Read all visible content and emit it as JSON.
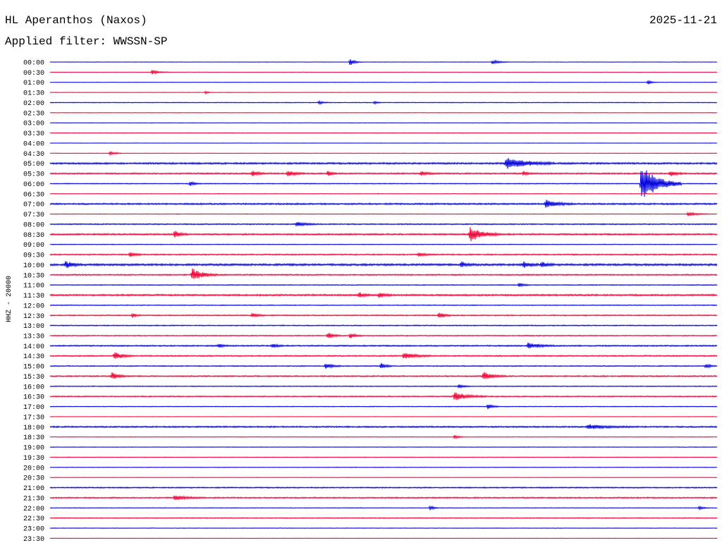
{
  "header": {
    "station": "HL Aperanthos (Naxos)",
    "date": "2025-11-21",
    "filter": "Applied filter: WWSSN-SP"
  },
  "channel_label": "HHZ - 20000",
  "colors": {
    "odd_row": "#0000dd",
    "even_row": "#ee0033"
  },
  "chart_data": {
    "type": "line",
    "title": "HL Aperanthos (Naxos)",
    "subtitle": "Applied filter: WWSSN-SP",
    "ylabel": "HHZ - 20000",
    "row_labels": [
      "00:00",
      "00:30",
      "01:00",
      "01:30",
      "02:00",
      "02:30",
      "03:00",
      "03:30",
      "04:00",
      "04:30",
      "05:00",
      "05:30",
      "06:00",
      "06:30",
      "07:00",
      "07:30",
      "08:00",
      "08:30",
      "09:00",
      "09:30",
      "10:00",
      "10:30",
      "11:00",
      "11:30",
      "12:00",
      "12:30",
      "13:00",
      "13:30",
      "14:00",
      "14:30",
      "15:00",
      "15:30",
      "16:00",
      "16:30",
      "17:00",
      "17:30",
      "18:00",
      "18:30",
      "19:00",
      "19:30",
      "20:00",
      "20:30",
      "21:00",
      "21:30",
      "22:00",
      "22:30",
      "23:00",
      "23:30"
    ],
    "row_minutes": 30,
    "noise": [
      0.3,
      0.3,
      0.3,
      0.3,
      0.5,
      0.3,
      0.3,
      0.4,
      0.3,
      0.3,
      1.2,
      1.0,
      0.6,
      0.4,
      1.1,
      0.4,
      0.8,
      1.1,
      0.5,
      0.9,
      1.4,
      0.9,
      0.6,
      1.2,
      0.6,
      0.8,
      0.7,
      0.7,
      0.9,
      0.9,
      0.7,
      0.9,
      0.6,
      0.8,
      0.5,
      0.3,
      1.0,
      0.4,
      0.4,
      0.4,
      0.4,
      0.3,
      0.8,
      0.9,
      0.4,
      0.6,
      0.4,
      0.3
    ],
    "events": [
      {
        "row": 0,
        "minute": 13.5,
        "amplitude": 5,
        "duration": 0.5
      },
      {
        "row": 0,
        "minute": 19.9,
        "amplitude": 3,
        "duration": 0.8
      },
      {
        "row": 1,
        "minute": 4.6,
        "amplitude": 3,
        "duration": 0.8
      },
      {
        "row": 2,
        "minute": 26.9,
        "amplitude": 3,
        "duration": 0.4
      },
      {
        "row": 3,
        "minute": 7.0,
        "amplitude": 2,
        "duration": 0.3
      },
      {
        "row": 4,
        "minute": 12.1,
        "amplitude": 2,
        "duration": 0.5
      },
      {
        "row": 4,
        "minute": 14.6,
        "amplitude": 2,
        "duration": 0.3
      },
      {
        "row": 9,
        "minute": 2.7,
        "amplitude": 3,
        "duration": 0.6
      },
      {
        "row": 10,
        "minute": 20.5,
        "amplitude": 8,
        "duration": 2.2
      },
      {
        "row": 11,
        "minute": 9.1,
        "amplitude": 4,
        "duration": 0.6
      },
      {
        "row": 11,
        "minute": 10.7,
        "amplitude": 4,
        "duration": 0.8
      },
      {
        "row": 11,
        "minute": 12.5,
        "amplitude": 4,
        "duration": 0.4
      },
      {
        "row": 11,
        "minute": 16.7,
        "amplitude": 3,
        "duration": 0.6
      },
      {
        "row": 11,
        "minute": 21.3,
        "amplitude": 3,
        "duration": 0.4
      },
      {
        "row": 11,
        "minute": 27.9,
        "amplitude": 4,
        "duration": 0.6
      },
      {
        "row": 12,
        "minute": 6.3,
        "amplitude": 3,
        "duration": 0.5
      },
      {
        "row": 12,
        "minute": 26.6,
        "amplitude": 26,
        "duration": 1.8
      },
      {
        "row": 14,
        "minute": 22.3,
        "amplitude": 5,
        "duration": 1.2
      },
      {
        "row": 15,
        "minute": 28.7,
        "amplitude": 3,
        "duration": 0.9
      },
      {
        "row": 16,
        "minute": 11.1,
        "amplitude": 3,
        "duration": 1.0
      },
      {
        "row": 17,
        "minute": 5.6,
        "amplitude": 5,
        "duration": 0.6
      },
      {
        "row": 17,
        "minute": 18.9,
        "amplitude": 10,
        "duration": 1.3
      },
      {
        "row": 19,
        "minute": 3.6,
        "amplitude": 3,
        "duration": 0.6
      },
      {
        "row": 19,
        "minute": 16.6,
        "amplitude": 3,
        "duration": 0.6
      },
      {
        "row": 20,
        "minute": 0.7,
        "amplitude": 5,
        "duration": 0.7
      },
      {
        "row": 20,
        "minute": 18.5,
        "amplitude": 4,
        "duration": 0.6
      },
      {
        "row": 20,
        "minute": 21.3,
        "amplitude": 4,
        "duration": 0.7
      },
      {
        "row": 20,
        "minute": 22.1,
        "amplitude": 4,
        "duration": 0.6
      },
      {
        "row": 21,
        "minute": 6.4,
        "amplitude": 9,
        "duration": 1.1
      },
      {
        "row": 22,
        "minute": 21.1,
        "amplitude": 3,
        "duration": 0.5
      },
      {
        "row": 23,
        "minute": 13.9,
        "amplitude": 4,
        "duration": 0.6
      },
      {
        "row": 23,
        "minute": 14.8,
        "amplitude": 4,
        "duration": 0.6
      },
      {
        "row": 25,
        "minute": 3.7,
        "amplitude": 3,
        "duration": 0.4
      },
      {
        "row": 25,
        "minute": 9.1,
        "amplitude": 3,
        "duration": 0.6
      },
      {
        "row": 25,
        "minute": 17.5,
        "amplitude": 5,
        "duration": 0.5
      },
      {
        "row": 27,
        "minute": 12.5,
        "amplitude": 5,
        "duration": 0.6
      },
      {
        "row": 27,
        "minute": 13.5,
        "amplitude": 4,
        "duration": 0.5
      },
      {
        "row": 28,
        "minute": 7.6,
        "amplitude": 3,
        "duration": 0.4
      },
      {
        "row": 28,
        "minute": 10.0,
        "amplitude": 3,
        "duration": 0.5
      },
      {
        "row": 28,
        "minute": 21.5,
        "amplitude": 4,
        "duration": 1.2
      },
      {
        "row": 29,
        "minute": 2.9,
        "amplitude": 5,
        "duration": 0.9
      },
      {
        "row": 29,
        "minute": 15.9,
        "amplitude": 4,
        "duration": 1.3
      },
      {
        "row": 30,
        "minute": 12.4,
        "amplitude": 4,
        "duration": 0.7
      },
      {
        "row": 30,
        "minute": 14.9,
        "amplitude": 4,
        "duration": 0.5
      },
      {
        "row": 30,
        "minute": 29.5,
        "amplitude": 4,
        "duration": 0.4
      },
      {
        "row": 31,
        "minute": 2.8,
        "amplitude": 6,
        "duration": 0.6
      },
      {
        "row": 31,
        "minute": 19.5,
        "amplitude": 6,
        "duration": 1.0
      },
      {
        "row": 32,
        "minute": 18.4,
        "amplitude": 3,
        "duration": 0.5
      },
      {
        "row": 33,
        "minute": 18.2,
        "amplitude": 6,
        "duration": 1.4
      },
      {
        "row": 34,
        "minute": 19.7,
        "amplitude": 4,
        "duration": 0.5
      },
      {
        "row": 36,
        "minute": 24.2,
        "amplitude": 3,
        "duration": 2.0
      },
      {
        "row": 37,
        "minute": 18.2,
        "amplitude": 3,
        "duration": 0.4
      },
      {
        "row": 43,
        "minute": 5.6,
        "amplitude": 3,
        "duration": 1.3
      },
      {
        "row": 44,
        "minute": 17.1,
        "amplitude": 3,
        "duration": 0.4
      },
      {
        "row": 44,
        "minute": 29.2,
        "amplitude": 3,
        "duration": 0.4
      }
    ],
    "grid": false,
    "legend": "none"
  }
}
